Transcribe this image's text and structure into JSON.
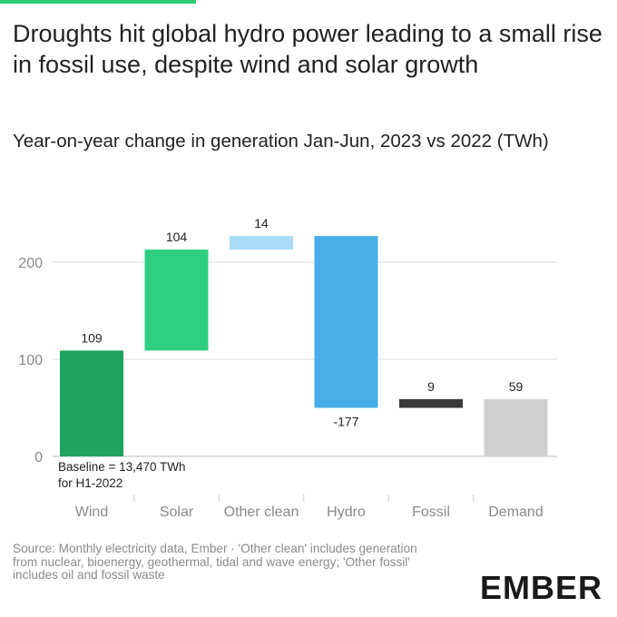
{
  "title": "Droughts hit global hydro power leading to a small rise in fossil use, despite wind and solar growth",
  "subtitle": "Year-on-year change in generation Jan-Jun, 2023 vs 2022 (TWh)",
  "source": "Source: Monthly electricity data, Ember · 'Other clean' includes generation from nuclear, bioenergy, geothermal, tidal and wave energy; 'Other fossil' includes oil and fossil waste",
  "brand": "EMBER",
  "chart_data": {
    "type": "bar",
    "subtype": "waterfall",
    "categories": [
      "Wind",
      "Solar",
      "Other clean",
      "Hydro",
      "Fossil",
      "Demand"
    ],
    "values": [
      109,
      104,
      14,
      -177,
      9,
      59
    ],
    "value_labels": [
      "109",
      "104",
      "14",
      "-177",
      "9",
      "59"
    ],
    "bar_ranges": [
      [
        0,
        109
      ],
      [
        109,
        213
      ],
      [
        213,
        227
      ],
      [
        50,
        227
      ],
      [
        50,
        59
      ],
      [
        0,
        59
      ]
    ],
    "colors": [
      "#1fa35f",
      "#2ecf80",
      "#a9dcf7",
      "#47aee8",
      "#3a3a3a",
      "#d0d0d0"
    ],
    "yticks": [
      0,
      100,
      200
    ],
    "ylim": [
      0,
      230
    ],
    "grid": true,
    "annotation": {
      "line1": "Baseline = 13,470 TWh",
      "line2": "for H1-2022"
    }
  }
}
